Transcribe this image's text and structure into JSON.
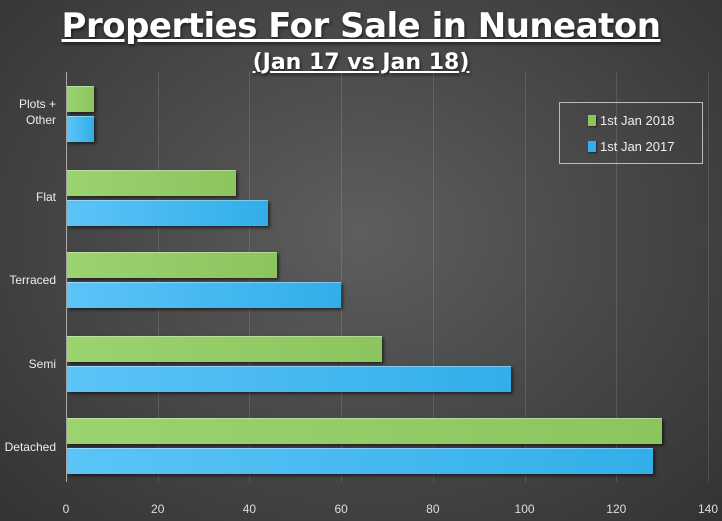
{
  "chart_data": {
    "type": "bar",
    "orientation": "horizontal",
    "title": "Properties For Sale in Nuneaton",
    "subtitle": "(Jan 17 vs Jan 18)",
    "xlabel": "",
    "ylabel": "",
    "categories": [
      "Plots + Other",
      "Flat",
      "Terraced",
      "Semi",
      "Detached"
    ],
    "series": [
      {
        "name": "1st Jan 2018",
        "color": "#8cc45e",
        "values": [
          6,
          37,
          46,
          69,
          130
        ]
      },
      {
        "name": "1st Jan 2017",
        "color": "#32aee9",
        "values": [
          6,
          44,
          60,
          97,
          128
        ]
      }
    ],
    "xlim": [
      0,
      140
    ],
    "xticks": [
      "0",
      "20",
      "40",
      "60",
      "80",
      "100",
      "120",
      "140"
    ],
    "grid": true,
    "legend_position": "top-right"
  },
  "labels": {
    "title": "Properties For Sale in Nuneaton",
    "subtitle": "(Jan 17 vs Jan 18)",
    "cat_plots_line1": "Plots +",
    "cat_plots_line2": "Other",
    "cat_flat": "Flat",
    "cat_terraced": "Terraced",
    "cat_semi": "Semi",
    "cat_detached": "Detached",
    "legend_2018": "1st Jan 2018",
    "legend_2017": "1st Jan 2017",
    "ticks": [
      "0",
      "20",
      "40",
      "60",
      "80",
      "100",
      "120",
      "140"
    ]
  }
}
